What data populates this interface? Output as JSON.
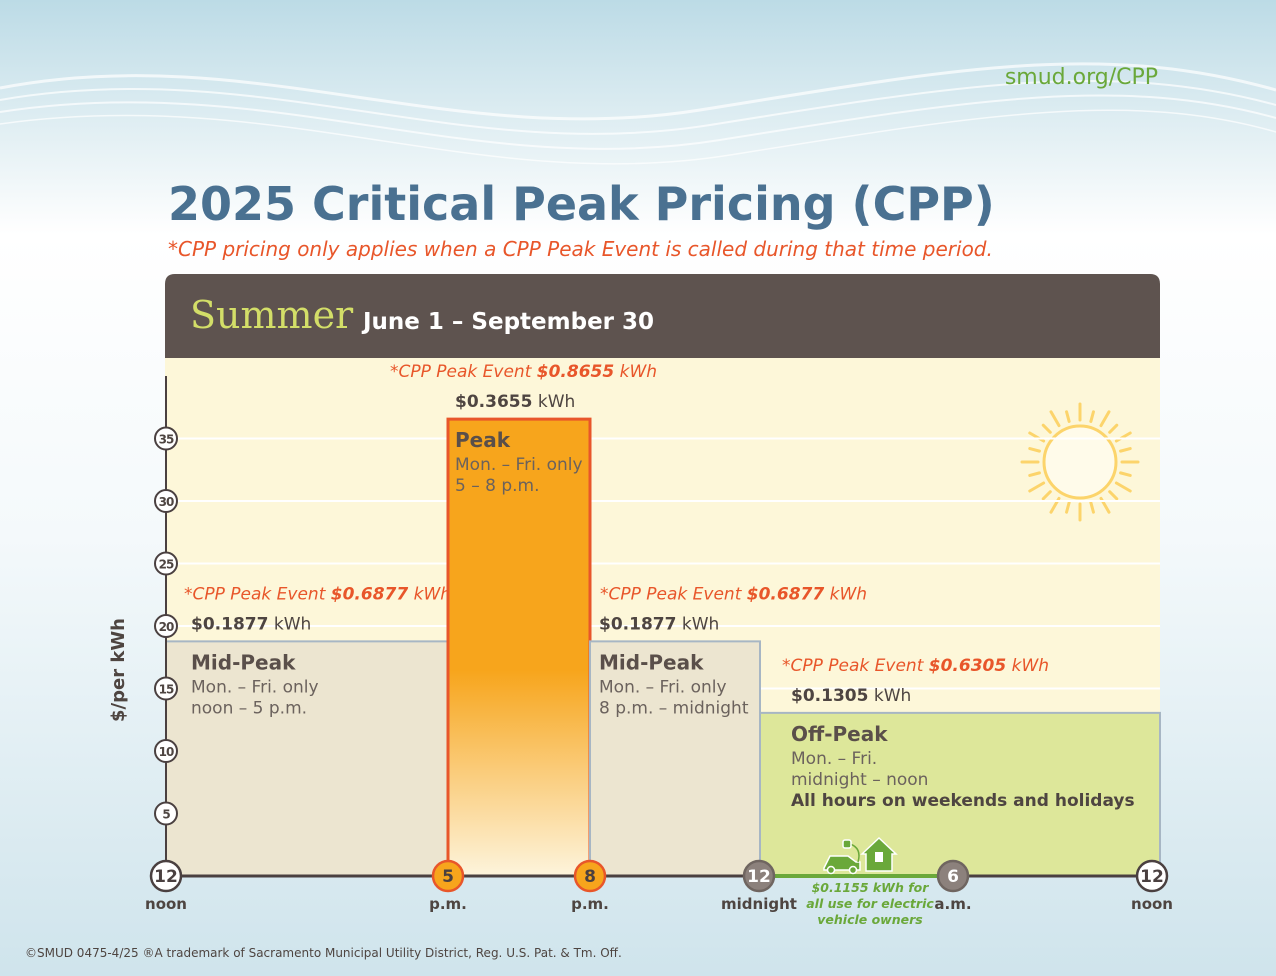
{
  "url": "smud.org/CPP",
  "chart_data": {
    "type": "bar",
    "title": "2025 Critical Peak Pricing (CPP)",
    "subtitle": "*CPP pricing only applies when a CPP Peak Event is called during that time period.",
    "season": "Summer",
    "season_dates": "June 1 – September 30",
    "ylabel": "$/per kWh",
    "ylim": [
      0,
      40
    ],
    "yticks": [
      5,
      10,
      15,
      20,
      25,
      30,
      35
    ],
    "grid": true,
    "categories": [
      "Mid-Peak",
      "Peak",
      "Mid-Peak",
      "Off-Peak"
    ],
    "values": [
      18.77,
      36.55,
      18.77,
      13.05
    ],
    "value_labels": [
      "$0.1877",
      "$0.3655",
      "$0.1877",
      "$0.1305"
    ],
    "colors": [
      "#ece5d0",
      "#f7a51c",
      "#ece5d0",
      "#dde79a"
    ],
    "unit": "kWh",
    "event_prefix": "*CPP Peak Event",
    "event_prices": [
      "$0.6877",
      "$0.8655",
      "$0.6877",
      "$0.6305"
    ],
    "details": [
      [
        "Mon. – Fri. only",
        "noon – 5 p.m."
      ],
      [
        "Mon. – Fri. only",
        "5 – 8 p.m."
      ],
      [
        "Mon. – Fri. only",
        "8 p.m. – midnight"
      ],
      [
        "Mon. – Fri.",
        "midnight  – noon"
      ]
    ],
    "note": "All hours on weekends and holidays",
    "time_marks": [
      {
        "hour": 12,
        "period": "noon"
      },
      {
        "hour": 5,
        "period": "p.m."
      },
      {
        "hour": 8,
        "period": "p.m."
      },
      {
        "hour": 12,
        "period": "midnight"
      },
      {
        "hour": 6,
        "period": "a.m."
      },
      {
        "hour": 12,
        "period": "noon"
      }
    ],
    "ev_note": [
      "$0.1155 kWh for",
      "all use for electric",
      "vehicle owners"
    ]
  },
  "footer": "©SMUD 0475-4/25 ®A trademark of Sacramento Municipal Utility District, Reg. U.S. Pat. & Tm. Off."
}
